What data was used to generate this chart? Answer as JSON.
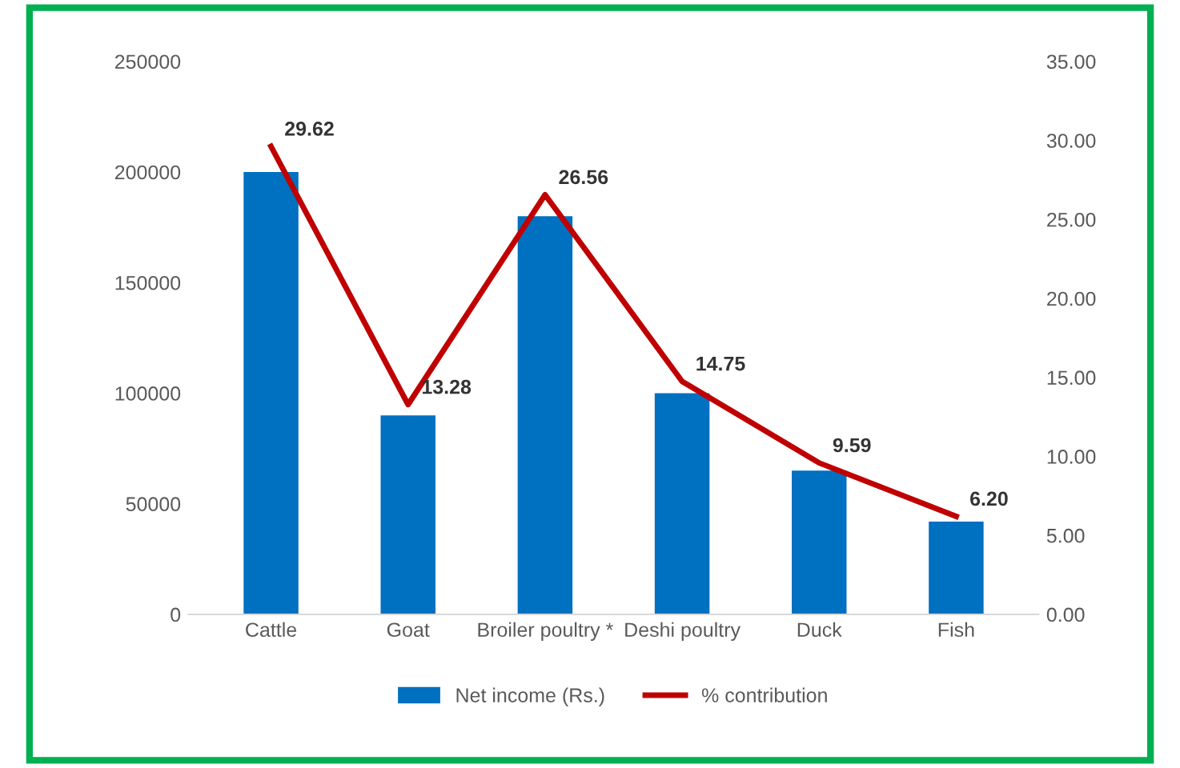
{
  "chart_data": {
    "type": "bar",
    "categories": [
      "Cattle",
      "Goat",
      "Broiler poultry *",
      "Deshi poultry",
      "Duck",
      "Fish"
    ],
    "series": [
      {
        "name": "Net income (Rs.)",
        "color": "#0070c0",
        "values": [
          200000,
          90000,
          180000,
          100000,
          65000,
          42000
        ]
      },
      {
        "name": "% contribution",
        "type": "line",
        "axis": "y2",
        "color": "#c00000",
        "values": [
          29.62,
          13.28,
          26.56,
          14.75,
          9.59,
          6.2
        ],
        "value_labels": [
          "29.62",
          "13.28",
          "26.56",
          "14.75",
          "9.59",
          "6.20"
        ]
      }
    ],
    "ylim": [
      0,
      250000
    ],
    "yticks": [
      0,
      50000,
      100000,
      150000,
      200000,
      250000
    ],
    "y2lim": [
      0,
      35
    ],
    "y2ticks": [
      {
        "value": 0,
        "label": "0.00"
      },
      {
        "value": 5,
        "label": "5.00"
      },
      {
        "value": 10,
        "label": "10.00"
      },
      {
        "value": 15,
        "label": "15.00"
      },
      {
        "value": 20,
        "label": "20.00"
      },
      {
        "value": 25,
        "label": "25.00"
      },
      {
        "value": 30,
        "label": "30.00"
      },
      {
        "value": 35,
        "label": "35.00"
      }
    ],
    "grid": false,
    "legend": "bottom",
    "marker": "none",
    "line_style": "solid"
  }
}
